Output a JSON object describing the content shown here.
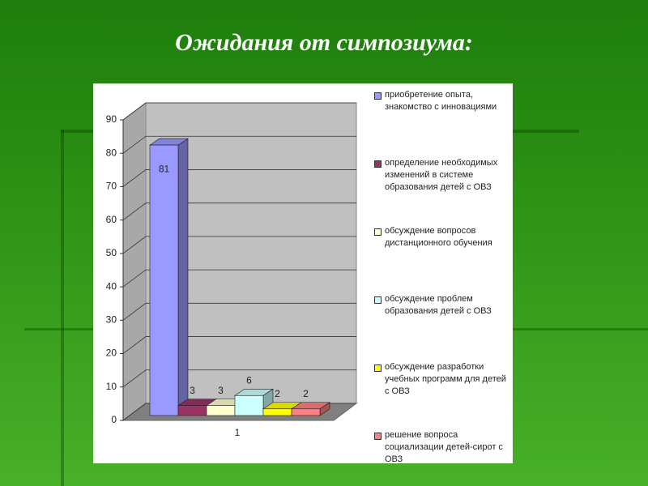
{
  "chart_data": {
    "type": "bar3d",
    "title": "Ожидания от симпозиума:",
    "categories": [
      "1"
    ],
    "series": [
      {
        "name": "приобретение опыта, знакомство с инновациями",
        "color": "#9999ff",
        "values": [
          81
        ]
      },
      {
        "name": "определение необходимых изменений в системе образования детей с ОВЗ",
        "color": "#993366",
        "values": [
          3
        ]
      },
      {
        "name": "обсуждение вопросов дистанционного обучения",
        "color": "#ffffcc",
        "values": [
          3
        ]
      },
      {
        "name": "обсуждение проблем образования детей с ОВЗ",
        "color": "#ccffff",
        "values": [
          6
        ]
      },
      {
        "name": "обсуждение разработки учебных программ для детей с ОВЗ",
        "color": "#ffff00",
        "values": [
          2
        ]
      },
      {
        "name": "решение вопроса социализации детей-сирот с ОВЗ",
        "color": "#ff8080",
        "values": [
          2
        ]
      }
    ],
    "ylim": [
      0,
      90
    ],
    "yticks": [
      0,
      10,
      20,
      30,
      40,
      50,
      60,
      70,
      80,
      90
    ],
    "grid": true,
    "legend": "right"
  }
}
